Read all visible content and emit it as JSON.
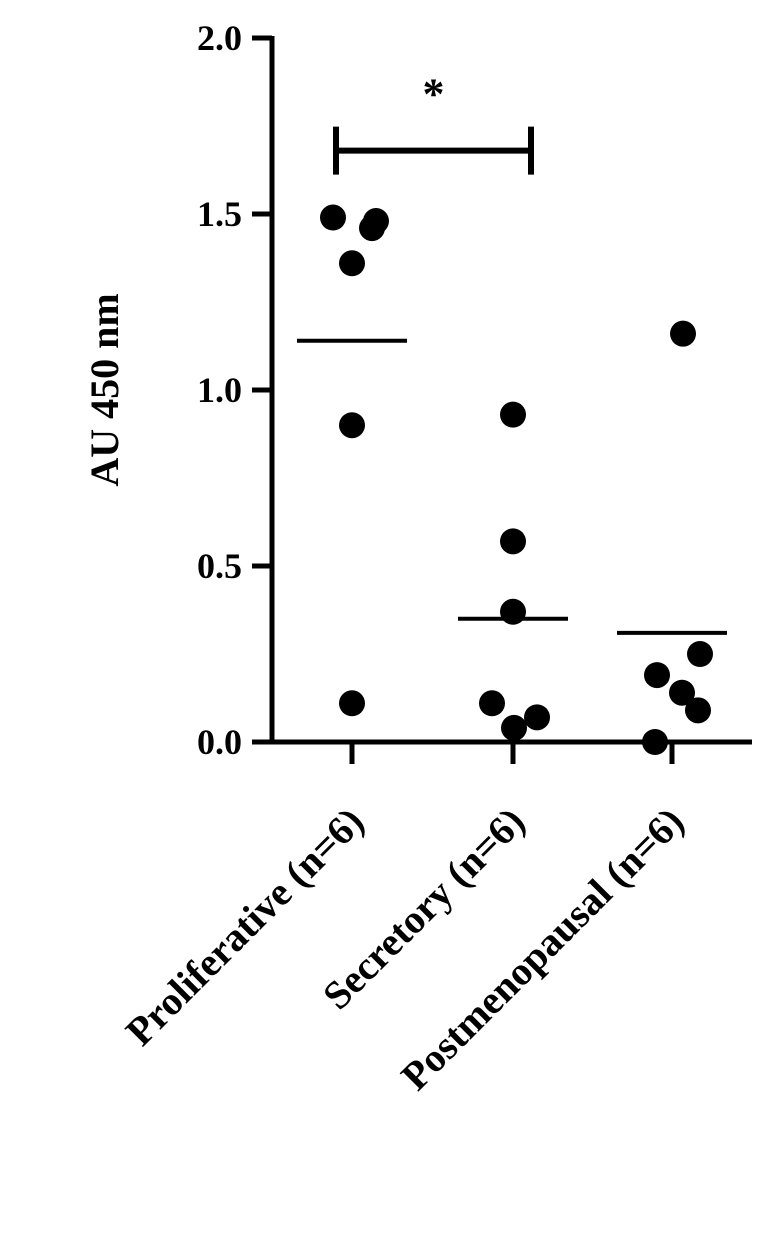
{
  "chart_data": {
    "type": "dot",
    "y_label": "AU 450 nm",
    "categories": [
      "Proliferative (n=6)",
      "Secretory (n=6)",
      "Postmenopausal (n=6)"
    ],
    "points": [
      [
        1.49,
        1.48,
        1.46,
        1.36,
        0.9,
        0.11
      ],
      [
        0.93,
        0.57,
        0.37,
        0.11,
        0.04,
        0.07
      ],
      [
        1.16,
        0.19,
        0.25,
        0.14,
        0.09,
        0.0
      ]
    ],
    "means": [
      1.14,
      0.35,
      0.31
    ],
    "color": "#000000",
    "ylim": [
      0,
      2
    ],
    "yticks": [
      {
        "value": 0,
        "label": "0.0"
      },
      0.5,
      {
        "value": 1,
        "label": "1.0"
      },
      1.5,
      {
        "value": 2,
        "label": "2.0"
      }
    ],
    "annotations": [
      {
        "text": "*",
        "y": 1.68
      }
    ]
  }
}
